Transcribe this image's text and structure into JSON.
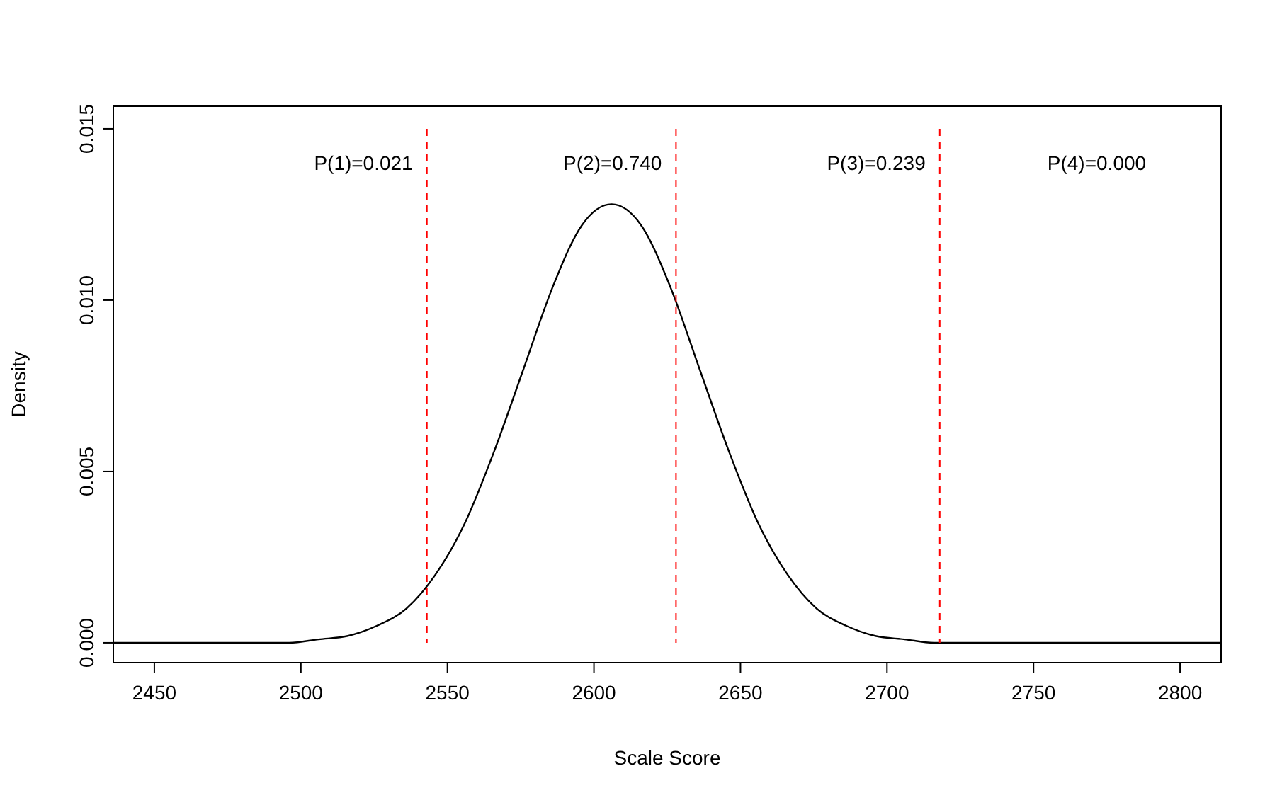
{
  "chart_data": {
    "type": "line",
    "xlabel": "Scale Score",
    "ylabel": "Density",
    "series": [
      {
        "color": "#000000",
        "x": [
          2436,
          2476,
          2486,
          2496,
          2506,
          2516,
          2526,
          2536,
          2546,
          2556,
          2566,
          2576,
          2586,
          2596,
          2606,
          2616,
          2626,
          2636,
          2646,
          2656,
          2666,
          2676,
          2686,
          2696,
          2706,
          2716,
          2726,
          2736,
          2814
        ],
        "values": [
          0,
          0,
          0,
          0,
          0.0001,
          0.0002,
          0.0005,
          0.001,
          0.002,
          0.0035,
          0.0056,
          0.008,
          0.0104,
          0.0122,
          0.0128,
          0.0122,
          0.0104,
          0.008,
          0.0056,
          0.0035,
          0.002,
          0.001,
          0.0005,
          0.0002,
          0.0001,
          0,
          0,
          0,
          0
        ]
      }
    ],
    "xlim": [
      2436,
      2814
    ],
    "xticks": [
      2450,
      2500,
      2550,
      2600,
      2650,
      2700,
      2750,
      2800
    ],
    "ylim": [
      -0.00058,
      0.01566
    ],
    "yticks": [
      {
        "value": 0,
        "label": "0.000"
      },
      {
        "value": 0.005,
        "label": "0.005"
      },
      {
        "value": 0.01,
        "label": "0.010"
      },
      {
        "value": 0.015,
        "label": "0.015"
      }
    ],
    "ref_lines": [
      {
        "axis": "x",
        "value": 2543,
        "color": "#ff0000",
        "line_style": "dashed"
      },
      {
        "axis": "x",
        "value": 2628,
        "color": "#ff0000",
        "line_style": "dashed"
      },
      {
        "axis": "x",
        "value": 2718,
        "color": "#ff0000",
        "line_style": "dashed"
      }
    ],
    "annotations": [
      "P(1)=0.021",
      "P(2)=0.740",
      "P(3)=0.239",
      "P(4)=0.000"
    ],
    "grid": false
  }
}
